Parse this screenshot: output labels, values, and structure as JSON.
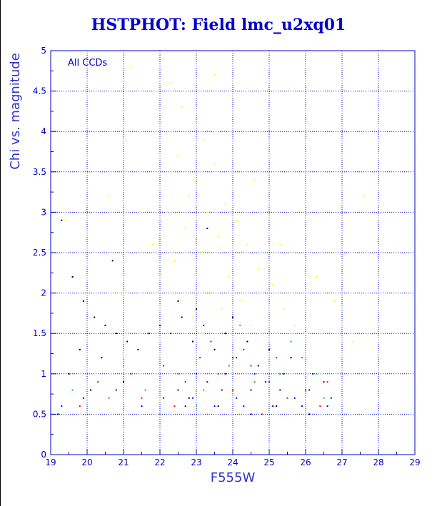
{
  "title": "HSTPHOT: Field lmc_u2xq01",
  "chart_data": {
    "type": "scatter",
    "title": "HSTPHOT: Field lmc_u2xq01",
    "xlabel": "F555W",
    "ylabel": "Chi vs. magnitude",
    "xlim": [
      19,
      29
    ],
    "ylim": [
      0,
      5
    ],
    "x_ticks": [
      "19",
      "20",
      "21",
      "22",
      "23",
      "24",
      "25",
      "26",
      "27",
      "28",
      "29"
    ],
    "y_ticks": [
      "0",
      "0.5",
      "1",
      "1.5",
      "2",
      "2.5",
      "3",
      "3.5",
      "4",
      "4.5",
      "5"
    ],
    "grid": true,
    "annotation": "All CCDs",
    "series": [
      {
        "color": "#ffff00",
        "points": [
          [
            22.3,
            4.6
          ],
          [
            22.6,
            4.3
          ],
          [
            22.9,
            4.1
          ],
          [
            23.2,
            3.9
          ],
          [
            22.5,
            3.7
          ],
          [
            23.5,
            3.6
          ],
          [
            23.0,
            3.4
          ],
          [
            22.8,
            3.2
          ],
          [
            23.8,
            3.1
          ],
          [
            23.3,
            3.0
          ],
          [
            24.1,
            2.9
          ],
          [
            22.7,
            2.8
          ],
          [
            23.6,
            2.7
          ],
          [
            24.4,
            2.6
          ],
          [
            23.1,
            2.5
          ],
          [
            22.4,
            2.4
          ],
          [
            24.7,
            2.3
          ],
          [
            23.9,
            2.2
          ],
          [
            25.1,
            2.1
          ],
          [
            23.4,
            2.0
          ],
          [
            22.6,
            1.9
          ],
          [
            24.2,
            1.9
          ],
          [
            25.4,
            1.8
          ],
          [
            23.7,
            1.8
          ],
          [
            24.9,
            1.7
          ],
          [
            22.9,
            1.7
          ],
          [
            25.7,
            1.6
          ],
          [
            24.5,
            1.6
          ],
          [
            23.2,
            1.5
          ],
          [
            26.0,
            1.5
          ],
          [
            21.2,
            4.8
          ],
          [
            20.6,
            3.2
          ],
          [
            19.4,
            2.9
          ],
          [
            26.8,
            1.9
          ],
          [
            27.3,
            1.4
          ],
          [
            22.1,
            4.9
          ],
          [
            24.0,
            4.4
          ],
          [
            25.3,
            2.6
          ],
          [
            26.3,
            2.2
          ],
          [
            21.8,
            2.6
          ],
          [
            23.5,
            4.7
          ],
          [
            24.6,
            3.4
          ],
          [
            22.2,
            3.0
          ],
          [
            27.6,
            3.2
          ],
          [
            20.9,
            2.0
          ]
        ]
      },
      {
        "color": "#000000",
        "points": [
          [
            19.3,
            2.9
          ],
          [
            19.6,
            2.2
          ],
          [
            19.9,
            1.9
          ],
          [
            20.2,
            1.7
          ],
          [
            20.5,
            1.6
          ],
          [
            20.8,
            1.5
          ],
          [
            21.1,
            1.4
          ],
          [
            21.4,
            1.3
          ],
          [
            19.8,
            1.3
          ],
          [
            20.4,
            1.2
          ],
          [
            21.7,
            1.5
          ],
          [
            22.0,
            1.6
          ],
          [
            22.3,
            1.5
          ],
          [
            22.6,
            1.7
          ],
          [
            22.9,
            1.4
          ],
          [
            23.2,
            1.6
          ],
          [
            23.5,
            1.3
          ],
          [
            23.8,
            1.5
          ],
          [
            24.1,
            1.2
          ],
          [
            24.4,
            1.4
          ],
          [
            24.7,
            1.1
          ],
          [
            25.0,
            1.3
          ],
          [
            25.3,
            1.0
          ],
          [
            25.6,
            1.2
          ],
          [
            22.5,
            1.9
          ],
          [
            23.0,
            1.8
          ],
          [
            24.0,
            1.7
          ],
          [
            19.5,
            1.0
          ],
          [
            20.1,
            0.8
          ],
          [
            21.0,
            0.9
          ],
          [
            22.8,
            0.7
          ],
          [
            23.6,
            0.6
          ],
          [
            24.5,
            0.5
          ],
          [
            25.2,
            0.6
          ],
          [
            26.1,
            0.5
          ],
          [
            19.2,
            0.5
          ],
          [
            20.7,
            2.4
          ],
          [
            23.3,
            2.8
          ]
        ]
      },
      {
        "color": "#ff0000",
        "points": [
          [
            20.3,
            0.9
          ],
          [
            21.2,
            1.0
          ],
          [
            22.1,
            1.1
          ],
          [
            22.7,
            0.9
          ],
          [
            23.1,
            1.2
          ],
          [
            23.6,
            1.0
          ],
          [
            24.0,
            0.8
          ],
          [
            24.5,
            1.1
          ],
          [
            25.0,
            0.9
          ],
          [
            25.5,
            0.7
          ],
          [
            26.0,
            0.8
          ],
          [
            26.4,
            0.6
          ],
          [
            23.4,
            1.4
          ],
          [
            24.3,
            1.3
          ],
          [
            25.2,
            1.2
          ],
          [
            22.4,
            0.6
          ],
          [
            21.5,
            0.7
          ],
          [
            19.8,
            0.6
          ],
          [
            26.6,
            0.9
          ],
          [
            24.8,
            0.5
          ]
        ]
      },
      {
        "color": "#00cc00",
        "points": [
          [
            20.6,
            0.7
          ],
          [
            21.6,
            0.8
          ],
          [
            22.5,
            1.0
          ],
          [
            23.2,
            0.8
          ],
          [
            23.9,
            1.1
          ],
          [
            24.6,
            0.9
          ],
          [
            25.3,
            1.0
          ],
          [
            25.9,
            1.2
          ],
          [
            26.3,
            1.0
          ],
          [
            24.2,
            1.6
          ],
          [
            25.0,
            1.5
          ],
          [
            25.6,
            1.4
          ],
          [
            22.0,
            0.5
          ],
          [
            23.0,
            0.6
          ],
          [
            26.5,
            0.7
          ],
          [
            21.0,
            1.1
          ],
          [
            19.6,
            0.8
          ],
          [
            24.9,
            2.0
          ]
        ]
      },
      {
        "color": "#0000ff",
        "points": [
          [
            22.1,
            0.7
          ],
          [
            22.5,
            0.8
          ],
          [
            22.9,
            0.7
          ],
          [
            23.3,
            0.9
          ],
          [
            23.7,
            0.8
          ],
          [
            24.1,
            0.7
          ],
          [
            24.5,
            0.8
          ],
          [
            24.9,
            0.9
          ],
          [
            25.3,
            0.8
          ],
          [
            25.7,
            0.7
          ],
          [
            26.1,
            0.8
          ],
          [
            26.5,
            0.9
          ],
          [
            26.7,
            0.7
          ],
          [
            23.0,
            1.0
          ],
          [
            23.8,
            1.0
          ],
          [
            24.6,
            1.0
          ],
          [
            25.4,
            1.0
          ],
          [
            26.2,
            1.0
          ],
          [
            22.7,
            0.6
          ],
          [
            23.5,
            0.6
          ],
          [
            24.3,
            0.6
          ],
          [
            25.1,
            0.6
          ],
          [
            25.9,
            0.6
          ],
          [
            26.6,
            0.6
          ],
          [
            21.5,
            0.6
          ],
          [
            20.8,
            0.8
          ],
          [
            19.9,
            0.7
          ],
          [
            19.3,
            0.6
          ],
          [
            24.0,
            1.2
          ],
          [
            25.0,
            1.3
          ]
        ]
      }
    ]
  }
}
